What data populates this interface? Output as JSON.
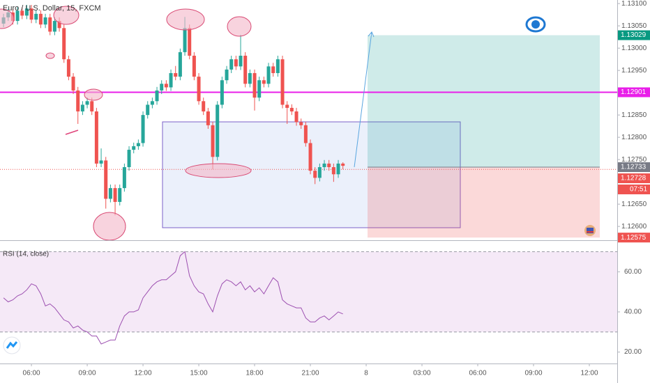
{
  "chart_data": {
    "type": "candlestick",
    "title": "Euro / U.S. Dollar, 15, FXCM",
    "x": [
      4.5,
      4.75,
      5,
      5.25,
      5.5,
      5.75,
      6,
      6.25,
      6.5,
      6.75,
      7,
      7.25,
      7.5,
      7.75,
      8,
      8.25,
      8.5,
      8.75,
      9,
      9.25,
      9.5,
      9.75,
      10,
      10.25,
      10.5,
      10.75,
      11,
      11.25,
      11.5,
      11.75,
      12,
      12.25,
      12.5,
      12.75,
      13,
      13.25,
      13.5,
      13.75,
      14,
      14.25,
      14.5,
      14.75,
      15,
      15.25,
      15.5,
      15.75,
      16,
      16.25,
      16.5,
      16.75,
      17,
      17.25,
      17.5,
      17.75,
      18,
      18.25,
      18.5,
      18.75,
      19,
      19.25,
      19.5,
      19.75,
      20,
      20.25,
      20.5,
      20.75,
      21,
      21.25,
      21.5,
      21.75,
      22,
      22.25,
      22.5,
      22.75
    ],
    "open": [
      1.13055,
      1.13069,
      1.1308,
      1.13061,
      1.13084,
      1.13073,
      1.13089,
      1.13064,
      1.13077,
      1.13053,
      1.13069,
      1.13037,
      1.13061,
      1.13045,
      1.12975,
      1.12936,
      1.12905,
      1.12858,
      1.12873,
      1.12881,
      1.12858,
      1.12741,
      1.12748,
      1.12662,
      1.12686,
      1.12655,
      1.12686,
      1.12733,
      1.12772,
      1.1278,
      1.12787,
      1.1285,
      1.12873,
      1.12881,
      1.12905,
      1.1292,
      1.12912,
      1.12944,
      1.12936,
      1.12991,
      1.13045,
      1.12983,
      1.12936,
      1.12881,
      1.12858,
      1.12827,
      1.12756,
      1.12873,
      1.12928,
      1.12952,
      1.12975,
      1.12959,
      1.12983,
      1.1292,
      1.12944,
      1.12889,
      1.12928,
      1.1292,
      1.12959,
      1.12944,
      1.12975,
      1.12873,
      1.12866,
      1.12858,
      1.12834,
      1.12827,
      1.12787,
      1.12725,
      1.12709,
      1.12733,
      1.12741,
      1.12733,
      1.12717,
      1.12741
    ],
    "high": [
      1.13077,
      1.13088,
      1.13088,
      1.13092,
      1.13092,
      1.13097,
      1.13097,
      1.13085,
      1.13085,
      1.13077,
      1.13077,
      1.13069,
      1.13069,
      1.13053,
      1.12983,
      1.12944,
      1.12913,
      1.12881,
      1.12889,
      1.12889,
      1.12866,
      1.12775,
      1.12756,
      1.12694,
      1.12694,
      1.12694,
      1.12741,
      1.1278,
      1.12788,
      1.12795,
      1.12858,
      1.12881,
      1.12889,
      1.12913,
      1.12928,
      1.12928,
      1.12952,
      1.1296,
      1.12999,
      1.1307,
      1.13053,
      1.12991,
      1.12944,
      1.12889,
      1.12866,
      1.12835,
      1.12881,
      1.12936,
      1.1296,
      1.12983,
      1.12983,
      1.1303,
      1.12991,
      1.12952,
      1.12952,
      1.12936,
      1.12936,
      1.12967,
      1.12967,
      1.12983,
      1.12983,
      1.12881,
      1.12874,
      1.12866,
      1.12842,
      1.12835,
      1.12795,
      1.12733,
      1.12741,
      1.12749,
      1.12749,
      1.12741,
      1.12749,
      1.12744
    ],
    "low": [
      1.13047,
      1.13061,
      1.13053,
      1.13053,
      1.13065,
      1.13065,
      1.13056,
      1.13056,
      1.13045,
      1.13045,
      1.13029,
      1.13029,
      1.13037,
      1.12967,
      1.12928,
      1.12897,
      1.1283,
      1.1285,
      1.12865,
      1.1285,
      1.12733,
      1.12733,
      1.1264,
      1.12654,
      1.12625,
      1.12647,
      1.12678,
      1.12725,
      1.12764,
      1.12772,
      1.12779,
      1.12842,
      1.12865,
      1.12873,
      1.12897,
      1.12904,
      1.12904,
      1.12928,
      1.12928,
      1.12983,
      1.12975,
      1.12928,
      1.12873,
      1.1285,
      1.12819,
      1.12728,
      1.12748,
      1.12865,
      1.1292,
      1.12944,
      1.12951,
      1.12951,
      1.12912,
      1.12912,
      1.1286,
      1.12881,
      1.12912,
      1.12912,
      1.12936,
      1.12936,
      1.12865,
      1.1283,
      1.1285,
      1.12826,
      1.12819,
      1.12779,
      1.12717,
      1.12695,
      1.12701,
      1.12725,
      1.12725,
      1.127,
      1.12709,
      1.12728
    ],
    "close": [
      1.13069,
      1.1308,
      1.13061,
      1.13084,
      1.13073,
      1.13089,
      1.13064,
      1.13077,
      1.13053,
      1.13069,
      1.13037,
      1.13061,
      1.13045,
      1.12975,
      1.12936,
      1.12905,
      1.12858,
      1.12873,
      1.12881,
      1.12858,
      1.12741,
      1.12748,
      1.12662,
      1.12686,
      1.12655,
      1.12686,
      1.12733,
      1.12772,
      1.1278,
      1.12787,
      1.1285,
      1.12873,
      1.12881,
      1.12905,
      1.1292,
      1.12912,
      1.12944,
      1.12936,
      1.12991,
      1.13045,
      1.12983,
      1.12936,
      1.12881,
      1.12858,
      1.12827,
      1.12756,
      1.12873,
      1.12928,
      1.12952,
      1.12975,
      1.12959,
      1.12983,
      1.1292,
      1.12944,
      1.12889,
      1.12928,
      1.1292,
      1.12959,
      1.12944,
      1.12975,
      1.12873,
      1.12866,
      1.12858,
      1.12834,
      1.12827,
      1.12787,
      1.12725,
      1.12709,
      1.12733,
      1.12741,
      1.12733,
      1.12717,
      1.12741,
      1.12736
    ],
    "up_color": "#26a69a",
    "down_color": "#ef5350",
    "xlim": [
      4.31,
      37.5
    ],
    "xticks": [
      {
        "value": 6,
        "label": "06:00"
      },
      {
        "value": 9,
        "label": "09:00"
      },
      {
        "value": 12,
        "label": "12:00"
      },
      {
        "value": 15,
        "label": "15:00"
      },
      {
        "value": 18,
        "label": "18:00"
      },
      {
        "value": 21,
        "label": "21:00"
      },
      {
        "value": 24,
        "label": "8"
      },
      {
        "value": 27,
        "label": "03:00"
      },
      {
        "value": 30,
        "label": "06:00"
      },
      {
        "value": 33,
        "label": "09:00"
      },
      {
        "value": 36,
        "label": "12:00"
      }
    ],
    "ylim": [
      1.12569,
      1.13108
    ],
    "yticks": [
      {
        "value": 1.131,
        "label": "1.13100"
      },
      {
        "value": 1.1305,
        "label": "1.13050"
      },
      {
        "value": 1.13,
        "label": "1.13000"
      },
      {
        "value": 1.1295,
        "label": "1.12950"
      },
      {
        "value": 1.1285,
        "label": "1.12850"
      },
      {
        "value": 1.128,
        "label": "1.12800"
      },
      {
        "value": 1.1275,
        "label": "1.12750"
      },
      {
        "value": 1.1265,
        "label": "1.12650"
      },
      {
        "value": 1.126,
        "label": "1.12600"
      }
    ],
    "levels": [
      {
        "value": 1.13029,
        "color": "#089981"
      },
      {
        "value": 1.12901,
        "color": "#e91ee9"
      },
      {
        "value": 1.12733,
        "color": "#787b86"
      },
      {
        "value": 1.12728,
        "color": "#ef5350"
      },
      {
        "value": 1.12575,
        "color": "#ef5350"
      }
    ],
    "countdown": "07:51",
    "rsi": {
      "title": "RSI (14, close)",
      "color": "#9c4fb0",
      "values": [
        47,
        45,
        46,
        48,
        49,
        51,
        54,
        53,
        49,
        43,
        44,
        42,
        39,
        36,
        35,
        32,
        33,
        31,
        30,
        28,
        28,
        24,
        25,
        26,
        26,
        33,
        38,
        40,
        40,
        41,
        47,
        50,
        53,
        55,
        56,
        56,
        58,
        60,
        68,
        70,
        58,
        53,
        50,
        49,
        44,
        40,
        48,
        54,
        56,
        55,
        53,
        55,
        51,
        53,
        50,
        52,
        49,
        53,
        57,
        55,
        46,
        44,
        43,
        42,
        42,
        37,
        35,
        35,
        37,
        38,
        36,
        38,
        40,
        39
      ],
      "ylim": [
        14.3,
        75.7
      ],
      "yticks": [
        {
          "value": 20,
          "label": "20.00"
        },
        {
          "value": 40,
          "label": "40.00"
        },
        {
          "value": 60,
          "label": "60.00"
        }
      ],
      "bands": [
        30,
        70
      ]
    }
  }
}
